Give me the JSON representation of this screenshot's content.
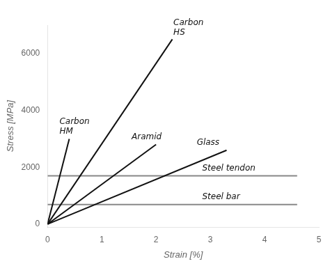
{
  "chart_data": {
    "type": "line",
    "xlabel": "Strain [%]",
    "ylabel": "Stress [MPa]",
    "xlim": [
      0,
      5
    ],
    "ylim": [
      -100,
      7000
    ],
    "xticks": [
      0,
      1,
      2,
      3,
      4,
      5
    ],
    "yticks": [
      0,
      2000,
      4000,
      6000
    ],
    "grid": false,
    "series": [
      {
        "x": [
          0,
          2.3
        ],
        "values": [
          0,
          6500
        ],
        "color": "#111111"
      },
      {
        "x": [
          0,
          0.4
        ],
        "values": [
          0,
          3000
        ],
        "color": "#111111"
      },
      {
        "x": [
          0,
          2.0
        ],
        "values": [
          0,
          2800
        ],
        "color": "#111111"
      },
      {
        "x": [
          0,
          3.3
        ],
        "values": [
          0,
          2600
        ],
        "color": "#111111"
      },
      {
        "x": [
          0,
          4.6
        ],
        "values": [
          1700,
          1700
        ],
        "color": "#888888"
      },
      {
        "x": [
          0,
          4.6
        ],
        "values": [
          690,
          690
        ],
        "color": "#888888"
      }
    ],
    "annotations": [
      {
        "text": "Carbon\nHS",
        "x": 2.32,
        "y": 6550
      },
      {
        "text": "Carbon\nHM",
        "x": 0.22,
        "y": 3050
      },
      {
        "text": "Aramid",
        "x": 1.55,
        "y": 2870
      },
      {
        "text": "Glass",
        "x": 2.75,
        "y": 2680
      },
      {
        "text": "Steel tendon",
        "x": 2.85,
        "y": 1760
      },
      {
        "text": "Steel bar",
        "x": 2.85,
        "y": 750
      }
    ]
  }
}
